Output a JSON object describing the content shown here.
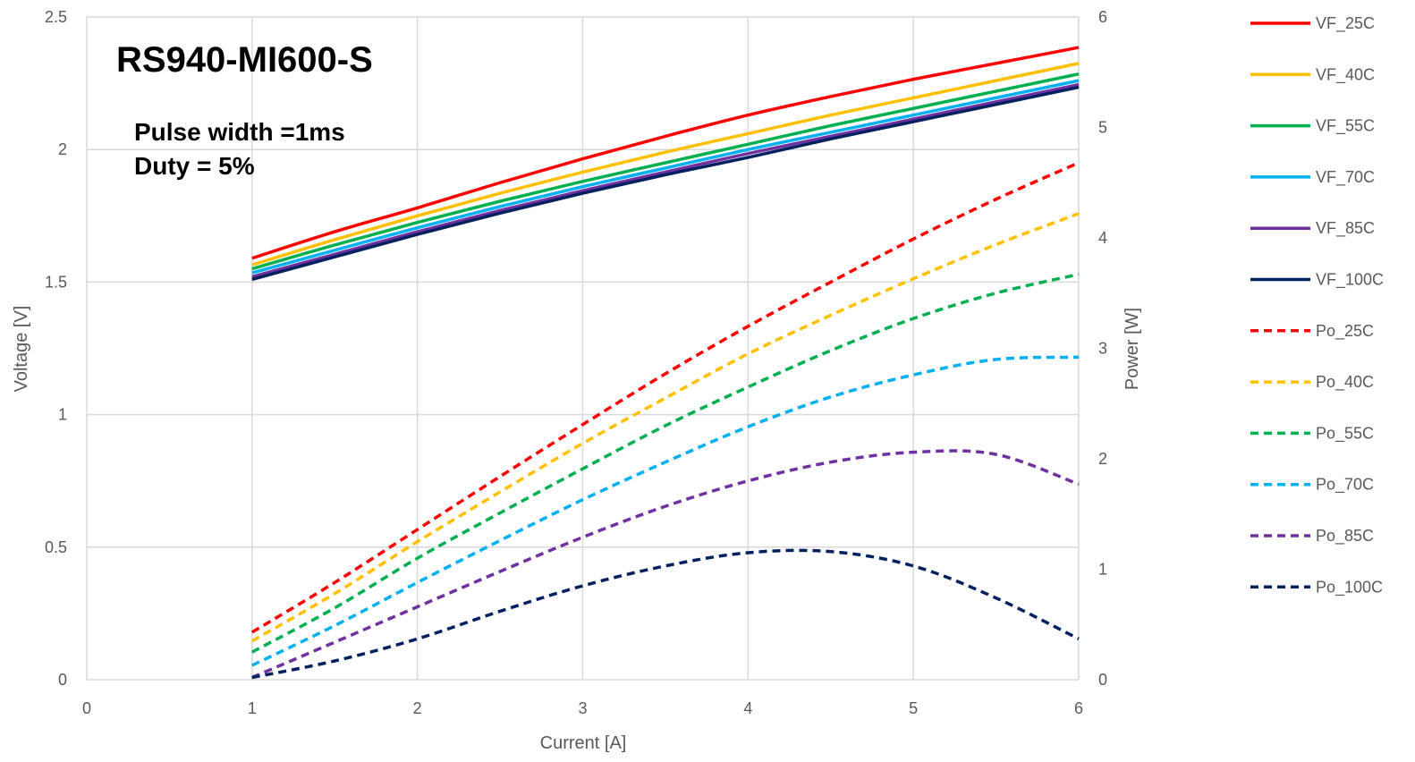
{
  "chart_data": {
    "type": "line",
    "title": "RS940-MI600-S",
    "annotations": [
      "Pulse width =1ms",
      "Duty = 5%"
    ],
    "xlabel": "Current [A]",
    "ylabel": "Voltage [V]",
    "y2label": "Power [W]",
    "xlim": [
      0,
      6
    ],
    "ylim": [
      0,
      2.5
    ],
    "y2lim": [
      0,
      6
    ],
    "x_ticks": [
      "0",
      "1",
      "2",
      "3",
      "4",
      "5",
      "6"
    ],
    "y_ticks": [
      "0",
      "0.5",
      "1",
      "1.5",
      "2",
      "2.5"
    ],
    "y2_ticks": [
      "0",
      "1",
      "2",
      "3",
      "4",
      "5",
      "6"
    ],
    "grid": true,
    "legend_position": "right",
    "x": [
      1,
      1.5,
      2,
      2.5,
      3,
      3.5,
      4,
      4.5,
      5,
      5.5,
      6
    ],
    "series": [
      {
        "name": "VF_25C",
        "axis": "left",
        "style": "solid",
        "color": "#ff0000",
        "values": [
          1.59,
          1.69,
          1.78,
          1.875,
          1.965,
          2.05,
          2.13,
          2.2,
          2.265,
          2.325,
          2.385
        ]
      },
      {
        "name": "VF_40C",
        "axis": "left",
        "style": "solid",
        "color": "#ffc000",
        "values": [
          1.565,
          1.66,
          1.75,
          1.835,
          1.915,
          1.99,
          2.06,
          2.13,
          2.195,
          2.26,
          2.325
        ]
      },
      {
        "name": "VF_55C",
        "axis": "left",
        "style": "solid",
        "color": "#00b050",
        "values": [
          1.55,
          1.64,
          1.725,
          1.805,
          1.88,
          1.95,
          2.02,
          2.09,
          2.155,
          2.22,
          2.285
        ]
      },
      {
        "name": "VF_70C",
        "axis": "left",
        "style": "solid",
        "color": "#00b0f0",
        "values": [
          1.535,
          1.62,
          1.705,
          1.785,
          1.86,
          1.93,
          2.0,
          2.065,
          2.13,
          2.195,
          2.26
        ]
      },
      {
        "name": "VF_85C",
        "axis": "left",
        "style": "solid",
        "color": "#7030a0",
        "values": [
          1.52,
          1.605,
          1.69,
          1.77,
          1.845,
          1.915,
          1.985,
          2.05,
          2.115,
          2.18,
          2.245
        ]
      },
      {
        "name": "VF_100C",
        "axis": "left",
        "style": "solid",
        "color": "#002060",
        "values": [
          1.51,
          1.595,
          1.68,
          1.76,
          1.835,
          1.905,
          1.97,
          2.04,
          2.105,
          2.17,
          2.235
        ]
      },
      {
        "name": "Po_25C",
        "axis": "right",
        "style": "dashed",
        "color": "#ff0000",
        "values": [
          0.43,
          0.88,
          1.36,
          1.84,
          2.31,
          2.77,
          3.2,
          3.6,
          3.99,
          4.35,
          4.68
        ]
      },
      {
        "name": "Po_40C",
        "axis": "right",
        "style": "dashed",
        "color": "#ffc000",
        "values": [
          0.35,
          0.78,
          1.25,
          1.7,
          2.14,
          2.55,
          2.95,
          3.3,
          3.63,
          3.94,
          4.22
        ]
      },
      {
        "name": "Po_55C",
        "axis": "right",
        "style": "dashed",
        "color": "#00b050",
        "values": [
          0.25,
          0.65,
          1.1,
          1.51,
          1.91,
          2.3,
          2.65,
          2.98,
          3.27,
          3.5,
          3.67
        ]
      },
      {
        "name": "Po_70C",
        "axis": "right",
        "style": "dashed",
        "color": "#00b0f0",
        "values": [
          0.13,
          0.49,
          0.88,
          1.26,
          1.63,
          1.97,
          2.29,
          2.56,
          2.76,
          2.9,
          2.92
        ]
      },
      {
        "name": "Po_85C",
        "axis": "right",
        "style": "dashed",
        "color": "#7030a0",
        "values": [
          0.02,
          0.34,
          0.66,
          0.98,
          1.29,
          1.57,
          1.8,
          1.97,
          2.06,
          2.04,
          1.77
        ]
      },
      {
        "name": "Po_100C",
        "axis": "right",
        "style": "dashed",
        "color": "#002060",
        "values": [
          0.02,
          0.17,
          0.37,
          0.62,
          0.85,
          1.03,
          1.15,
          1.16,
          1.03,
          0.74,
          0.37
        ]
      }
    ]
  }
}
